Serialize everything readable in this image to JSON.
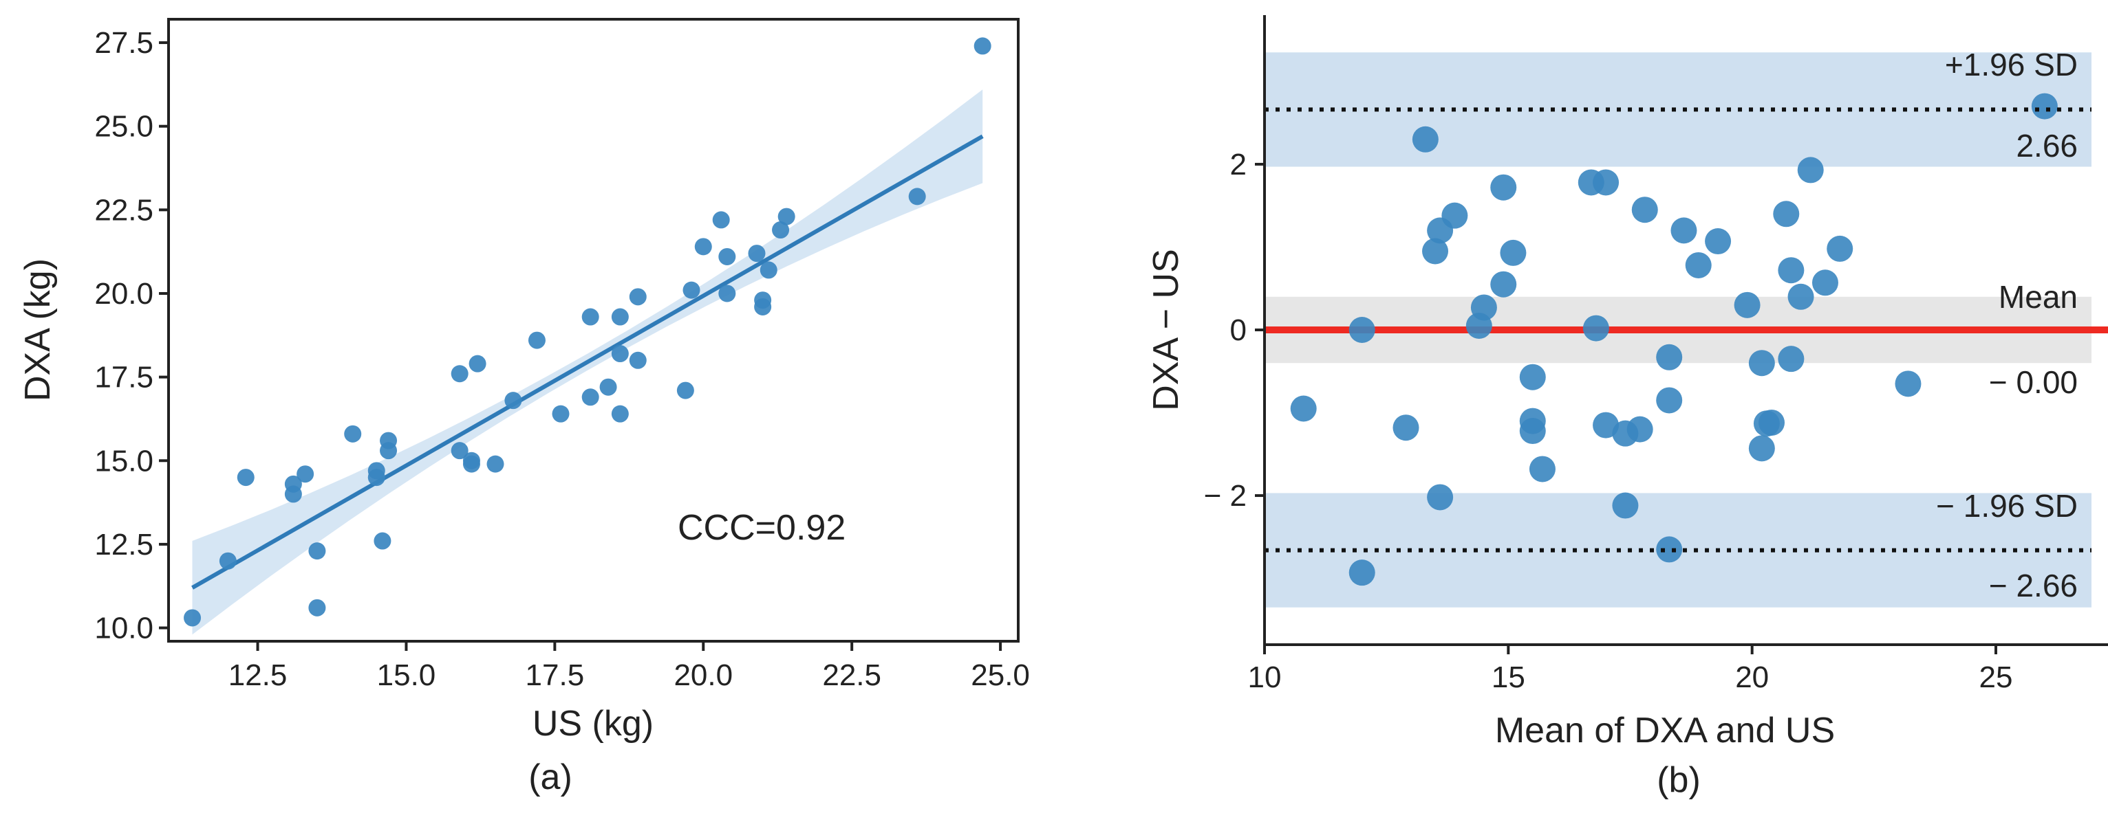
{
  "figure": {
    "panel_a_label": "(a)",
    "panel_b_label": "(b)"
  },
  "chart_data": [
    {
      "type": "scatter",
      "panel": "(a)",
      "xlabel": "US (kg)",
      "ylabel": "DXA (kg)",
      "xlim": [
        11.0,
        25.3
      ],
      "ylim": [
        9.6,
        28.2
      ],
      "xticks": [
        12.5,
        15.0,
        17.5,
        20.0,
        22.5,
        25.0
      ],
      "xtick_labels": [
        "12.5",
        "15.0",
        "17.5",
        "20.0",
        "22.5",
        "25.0"
      ],
      "yticks": [
        10.0,
        12.5,
        15.0,
        17.5,
        20.0,
        22.5,
        25.0,
        27.5
      ],
      "ytick_labels": [
        "10.0",
        "12.5",
        "15.0",
        "17.5",
        "20.0",
        "22.5",
        "25.0",
        "27.5"
      ],
      "grid": false,
      "annotation": "CCC=0.92",
      "point_color": "#3a86c0",
      "line_color": "#2f7bb8",
      "band_color": "#c8ddf0",
      "regression": {
        "x": [
          11.4,
          24.7
        ],
        "y": [
          11.2,
          24.7
        ],
        "ci_start": [
          10.4,
          12.0
        ],
        "ci_end": [
          23.7,
          25.6
        ]
      },
      "points": [
        [
          11.4,
          10.3
        ],
        [
          12.0,
          12.0
        ],
        [
          12.3,
          14.5
        ],
        [
          13.1,
          14.3
        ],
        [
          13.1,
          14.0
        ],
        [
          13.3,
          14.6
        ],
        [
          13.5,
          12.3
        ],
        [
          13.5,
          10.6
        ],
        [
          14.1,
          15.8
        ],
        [
          14.5,
          14.5
        ],
        [
          14.5,
          14.7
        ],
        [
          14.6,
          12.6
        ],
        [
          14.7,
          15.6
        ],
        [
          14.7,
          15.3
        ],
        [
          15.9,
          17.6
        ],
        [
          15.9,
          15.3
        ],
        [
          16.1,
          15.0
        ],
        [
          16.1,
          14.9
        ],
        [
          16.2,
          17.9
        ],
        [
          16.5,
          14.9
        ],
        [
          16.8,
          16.8
        ],
        [
          17.2,
          18.6
        ],
        [
          17.6,
          16.4
        ],
        [
          18.1,
          19.3
        ],
        [
          18.1,
          16.9
        ],
        [
          18.4,
          17.2
        ],
        [
          18.6,
          19.3
        ],
        [
          18.6,
          18.2
        ],
        [
          18.6,
          16.4
        ],
        [
          18.9,
          19.9
        ],
        [
          18.9,
          18.0
        ],
        [
          19.7,
          17.1
        ],
        [
          19.8,
          20.1
        ],
        [
          20.0,
          21.4
        ],
        [
          20.3,
          22.2
        ],
        [
          20.4,
          21.1
        ],
        [
          20.4,
          20.0
        ],
        [
          20.9,
          21.2
        ],
        [
          21.0,
          19.8
        ],
        [
          21.0,
          19.6
        ],
        [
          21.1,
          20.7
        ],
        [
          21.3,
          21.9
        ],
        [
          21.4,
          22.3
        ],
        [
          23.6,
          22.9
        ],
        [
          24.7,
          27.4
        ]
      ]
    },
    {
      "type": "scatter",
      "panel": "(b)",
      "xlabel": "Mean of DXA and US",
      "ylabel": "DXA − US",
      "xlim": [
        10,
        27.3
      ],
      "ylim": [
        -3.8,
        3.8
      ],
      "xticks": [
        10,
        15,
        20,
        25
      ],
      "xtick_labels": [
        "10",
        "15",
        "20",
        "25"
      ],
      "yticks": [
        -2,
        0,
        2
      ],
      "ytick_labels": [
        "− 2",
        "0",
        "2"
      ],
      "grid": false,
      "mean_line": {
        "y": 0.0,
        "label": "Mean",
        "value_label": "− 0.00",
        "color": "#ee2a22",
        "band": [
          -0.4,
          0.4
        ],
        "band_color": "#e6e6e6"
      },
      "upper_loa": {
        "y": 2.66,
        "label": "+1.96 SD",
        "value_label": "2.66",
        "band": [
          1.97,
          3.35
        ],
        "band_color": "#cfe0f0"
      },
      "lower_loa": {
        "y": -2.66,
        "label": "− 1.96 SD",
        "value_label": "− 2.66",
        "band": [
          -3.35,
          -1.97
        ],
        "band_color": "#cfe0f0"
      },
      "point_color": "#3a86c0",
      "points": [
        [
          10.8,
          -0.95
        ],
        [
          12.0,
          0.0
        ],
        [
          12.0,
          -2.93
        ],
        [
          12.9,
          -1.18
        ],
        [
          13.3,
          2.3
        ],
        [
          13.5,
          0.95
        ],
        [
          13.6,
          1.2
        ],
        [
          13.6,
          -2.02
        ],
        [
          13.9,
          1.38
        ],
        [
          14.4,
          0.05
        ],
        [
          14.5,
          0.27
        ],
        [
          14.9,
          1.72
        ],
        [
          14.9,
          0.55
        ],
        [
          15.1,
          0.93
        ],
        [
          15.5,
          -1.22
        ],
        [
          15.5,
          -1.1
        ],
        [
          15.5,
          -0.57
        ],
        [
          15.7,
          -1.68
        ],
        [
          16.7,
          1.78
        ],
        [
          16.8,
          0.02
        ],
        [
          17.0,
          -1.15
        ],
        [
          17.0,
          1.78
        ],
        [
          17.4,
          -2.12
        ],
        [
          17.4,
          -1.25
        ],
        [
          17.7,
          -1.2
        ],
        [
          17.8,
          1.45
        ],
        [
          18.3,
          -0.33
        ],
        [
          18.3,
          -0.85
        ],
        [
          18.3,
          -2.65
        ],
        [
          18.6,
          1.2
        ],
        [
          18.9,
          0.78
        ],
        [
          19.3,
          1.07
        ],
        [
          19.9,
          0.3
        ],
        [
          20.2,
          -0.4
        ],
        [
          20.2,
          -1.43
        ],
        [
          20.3,
          -1.13
        ],
        [
          20.4,
          -1.12
        ],
        [
          20.7,
          1.4
        ],
        [
          20.8,
          0.72
        ],
        [
          20.8,
          -0.35
        ],
        [
          21.0,
          0.4
        ],
        [
          21.2,
          1.93
        ],
        [
          21.5,
          0.57
        ],
        [
          21.8,
          0.98
        ],
        [
          23.2,
          -0.65
        ],
        [
          26.0,
          2.7
        ]
      ]
    }
  ]
}
